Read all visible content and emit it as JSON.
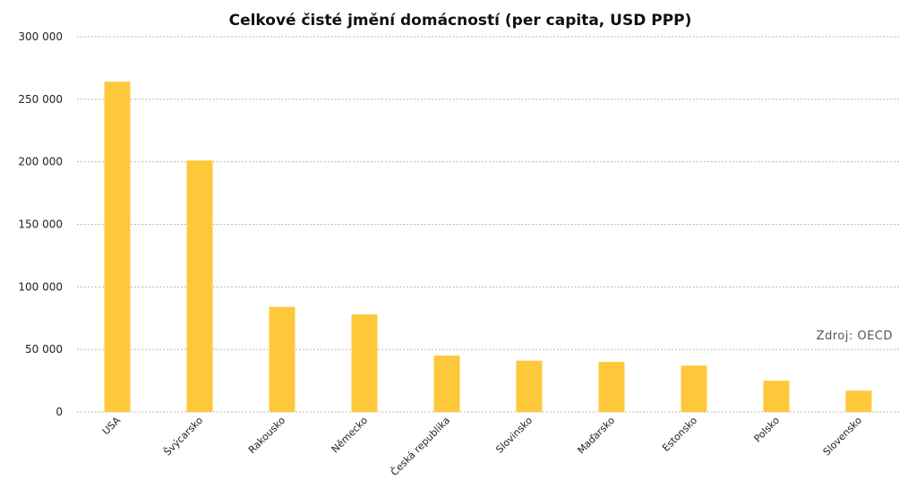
{
  "chart_data": {
    "type": "bar",
    "title": "Celkové čisté jmění domácností (per capita, USD PPP)",
    "source_note": "Zdroj: OECD",
    "categories": [
      "USA",
      "Švýcarsko",
      "Rakousko",
      "Německo",
      "Česká republika",
      "Slovinsko",
      "Maďarsko",
      "Estonsko",
      "Polsko",
      "Slovensko"
    ],
    "values": [
      264000,
      201000,
      84000,
      78000,
      45000,
      41000,
      40000,
      37000,
      25000,
      17000
    ],
    "yticks": [
      0,
      50000,
      100000,
      150000,
      200000,
      250000,
      300000
    ],
    "ytick_labels": [
      "0",
      "50 000",
      "100 000",
      "150 000",
      "200 000",
      "250 000",
      "300 000"
    ],
    "ylim": [
      0,
      300000
    ],
    "bar_color": "#FFC83A",
    "grid": true,
    "legend": false
  }
}
